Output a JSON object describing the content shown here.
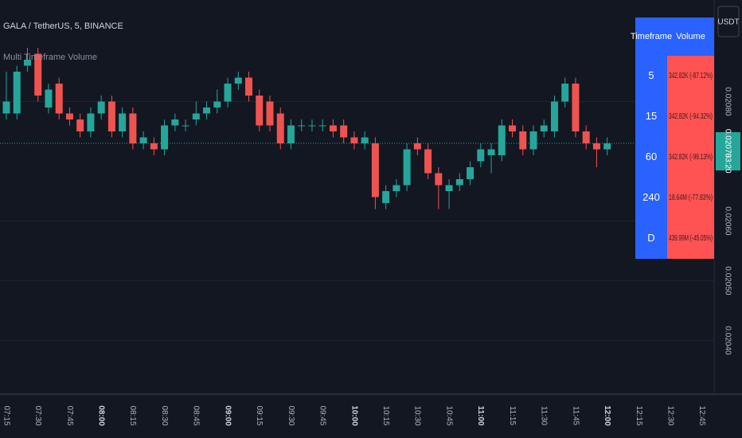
{
  "header": {
    "symbol": "GALA / TetherUS, 5, BINANCE",
    "indicator": "Multi Timeframe Volume"
  },
  "price_axis": {
    "currency": "USDT",
    "countdown": "03:20"
  },
  "table": {
    "header": [
      "Timeframe",
      "Volume"
    ],
    "rows": [
      [
        "5",
        "342.82K (-87.12%)"
      ],
      [
        "15",
        "342.82K (-94.32%)"
      ],
      [
        "60",
        "342.82K (-98.13%)"
      ],
      [
        "240",
        "18.64M (-77.83%)"
      ],
      [
        "D",
        "439.99M (-45.05%)"
      ]
    ]
  },
  "chart_data": {
    "type": "candlestick",
    "x": [
      "07:15",
      "07:20",
      "07:25",
      "07:30",
      "07:35",
      "07:40",
      "07:45",
      "07:50",
      "07:55",
      "08:00",
      "08:05",
      "08:10",
      "08:15",
      "08:20",
      "08:25",
      "08:30",
      "08:35",
      "08:40",
      "08:45",
      "08:50",
      "08:55",
      "09:00",
      "09:05",
      "09:10",
      "09:15",
      "09:20",
      "09:25",
      "09:30",
      "09:35",
      "09:40",
      "09:45",
      "09:50",
      "09:55",
      "10:00",
      "10:05",
      "10:10",
      "10:15",
      "10:20",
      "10:25",
      "10:30",
      "10:35",
      "10:40",
      "10:45",
      "10:50",
      "10:55",
      "11:00",
      "11:05",
      "11:10",
      "11:15",
      "11:20",
      "11:25",
      "11:30",
      "11:35",
      "11:40",
      "11:45",
      "11:50",
      "11:55",
      "12:00"
    ],
    "open": [
      0.02078,
      0.02078,
      0.02086,
      0.02088,
      0.02079,
      0.02083,
      0.02078,
      0.02077,
      0.02075,
      0.02078,
      0.0208,
      0.02075,
      0.02078,
      0.02073,
      0.02073,
      0.02072,
      0.02076,
      0.02076,
      0.02077,
      0.02078,
      0.02079,
      0.0208,
      0.02083,
      0.02084,
      0.02081,
      0.0208,
      0.02078,
      0.02073,
      0.02076,
      0.02076,
      0.02076,
      0.02076,
      0.02076,
      0.02074,
      0.02073,
      0.02073,
      0.02063,
      0.02065,
      0.02066,
      0.02073,
      0.02072,
      0.02068,
      0.02065,
      0.02066,
      0.02067,
      0.0207,
      0.02071,
      0.02071,
      0.02076,
      0.02075,
      0.02072,
      0.02075,
      0.02075,
      0.0208,
      0.02083,
      0.02075,
      0.02073,
      0.02072
    ],
    "high": [
      0.02085,
      0.02086,
      0.02089,
      0.02089,
      0.02083,
      0.02084,
      0.02079,
      0.02078,
      0.02079,
      0.02081,
      0.02081,
      0.02079,
      0.02079,
      0.02075,
      0.02074,
      0.02077,
      0.02078,
      0.02077,
      0.0208,
      0.0208,
      0.02082,
      0.02084,
      0.02085,
      0.02085,
      0.02082,
      0.02081,
      0.02079,
      0.02077,
      0.02077,
      0.02077,
      0.02077,
      0.02077,
      0.02077,
      0.02075,
      0.02075,
      0.02074,
      0.02066,
      0.02067,
      0.02073,
      0.02074,
      0.02073,
      0.02069,
      0.02067,
      0.02068,
      0.0207,
      0.02073,
      0.02073,
      0.02077,
      0.02077,
      0.02076,
      0.02076,
      0.02077,
      0.02081,
      0.02084,
      0.02084,
      0.02076,
      0.02074,
      0.02074
    ],
    "low": [
      0.02077,
      0.02077,
      0.02085,
      0.0208,
      0.02078,
      0.02077,
      0.02076,
      0.02074,
      0.02074,
      0.02077,
      0.02074,
      0.02074,
      0.02072,
      0.02072,
      0.02071,
      0.02071,
      0.02075,
      0.02075,
      0.02076,
      0.02077,
      0.02078,
      0.02079,
      0.02082,
      0.0208,
      0.02075,
      0.02075,
      0.02072,
      0.02072,
      0.02075,
      0.02075,
      0.02075,
      0.02074,
      0.02073,
      0.02072,
      0.02072,
      0.02062,
      0.02062,
      0.02064,
      0.02065,
      0.02071,
      0.02067,
      0.02062,
      0.02062,
      0.02065,
      0.02066,
      0.02069,
      0.02068,
      0.0207,
      0.02074,
      0.02071,
      0.02071,
      0.02074,
      0.02074,
      0.02079,
      0.02074,
      0.02072,
      0.02069,
      0.02071
    ],
    "close": [
      0.0208,
      0.02085,
      0.02087,
      0.02081,
      0.02082,
      0.02078,
      0.02077,
      0.02075,
      0.02078,
      0.0208,
      0.02075,
      0.02078,
      0.02073,
      0.02074,
      0.02072,
      0.02076,
      0.02077,
      0.02076,
      0.02078,
      0.02079,
      0.0208,
      0.02083,
      0.02084,
      0.02081,
      0.02076,
      0.02076,
      0.02073,
      0.02076,
      0.02076,
      0.02076,
      0.02076,
      0.02075,
      0.02074,
      0.02073,
      0.02074,
      0.02064,
      0.02065,
      0.02066,
      0.02072,
      0.02072,
      0.02068,
      0.02066,
      0.02066,
      0.02067,
      0.02069,
      0.02072,
      0.02072,
      0.02076,
      0.02075,
      0.02072,
      0.02075,
      0.02076,
      0.0208,
      0.02083,
      0.02075,
      0.02073,
      0.02072,
      0.02073
    ],
    "up_color": "#26a69a",
    "down_color": "#ef5350",
    "last_price": 0.02073,
    "ylim": [
      0.02031,
      0.02097
    ],
    "yticks": [
      {
        "value": 0.0204,
        "label": "0.02040"
      },
      {
        "value": 0.0205,
        "label": "0.02050"
      },
      {
        "value": 0.0206,
        "label": "0.02060"
      },
      {
        "value": 0.0208,
        "label": "0.02080"
      }
    ],
    "xticks": [
      "07:15",
      "07:30",
      "07:45",
      "08:00",
      "08:15",
      "08:30",
      "08:45",
      "09:00",
      "09:15",
      "09:30",
      "09:45",
      "10:00",
      "10:15",
      "10:30",
      "10:45",
      "11:00",
      "11:15",
      "11:30",
      "11:45",
      "12:00",
      "12:15",
      "12:30",
      "12:45"
    ],
    "grid": true
  }
}
